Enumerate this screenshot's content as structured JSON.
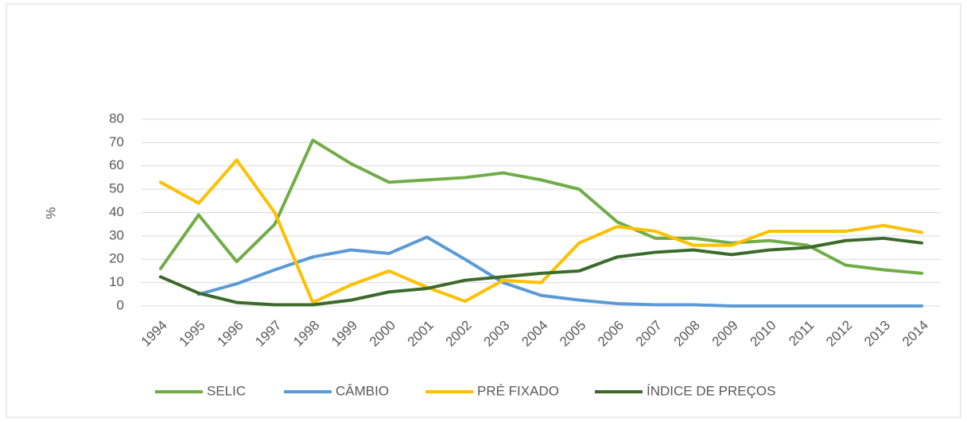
{
  "chart_data": {
    "type": "line",
    "y_label": "%",
    "categories": [
      "1994",
      "1995",
      "1996",
      "1997",
      "1998",
      "1999",
      "2000",
      "2001",
      "2002",
      "2003",
      "2004",
      "2005",
      "2006",
      "2007",
      "2008",
      "2009",
      "2010",
      "2011",
      "2012",
      "2013",
      "2014"
    ],
    "series": [
      {
        "name": "SELIC",
        "color": "#70ad47",
        "values": [
          16,
          39,
          19,
          35,
          71,
          61,
          53,
          54,
          55,
          57,
          54,
          50,
          36,
          29,
          29,
          27,
          28,
          26,
          17.5,
          15.5,
          14
        ]
      },
      {
        "name": "CÂMBIO",
        "color": "#5b9bd5",
        "values": [
          null,
          5,
          9.5,
          15.5,
          21,
          24,
          22.5,
          29.5,
          20,
          10,
          4.5,
          2.5,
          1,
          0.5,
          0.5,
          0,
          0,
          0,
          0,
          0,
          0
        ]
      },
      {
        "name": "PRÉ FIXADO",
        "color": "#ffc000",
        "values": [
          53,
          44,
          62.5,
          40,
          1.5,
          9,
          15,
          8,
          2,
          11,
          10,
          27,
          34,
          32,
          26,
          26,
          32,
          32,
          32,
          34.5,
          31.5
        ]
      },
      {
        "name": "ÍNDICE DE PREÇOS",
        "color": "#3b6a2a",
        "values": [
          12.5,
          5.5,
          1.5,
          0.5,
          0.5,
          2.5,
          6,
          7.5,
          11,
          12.5,
          14,
          15,
          21,
          23,
          24,
          22,
          24,
          25,
          28,
          29,
          27
        ]
      }
    ],
    "ylim": [
      0,
      80
    ],
    "yticks": [
      0,
      10,
      20,
      30,
      40,
      50,
      60,
      70,
      80
    ],
    "grid": true,
    "legend": "bottom"
  }
}
